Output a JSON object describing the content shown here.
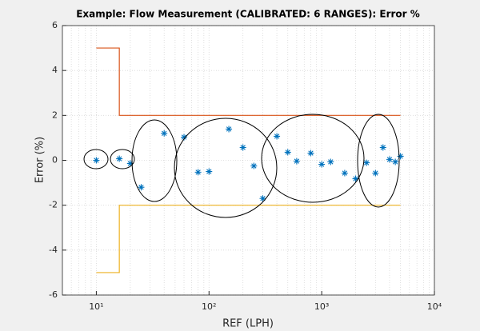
{
  "chart_data": {
    "type": "scatter",
    "title": "Example: Flow Measurement (CALIBRATED: 6 RANGES): Error %",
    "x_label": "REF (LPH)",
    "y_label": "Error (%)",
    "x_scale": "log",
    "grid": true,
    "minor_grid": true,
    "xlim": [
      5,
      10000
    ],
    "xticks": [
      {
        "value": 10,
        "label": "10¹"
      },
      {
        "value": 100,
        "label": "10²"
      },
      {
        "value": 1000,
        "label": "10³"
      },
      {
        "value": 10000,
        "label": "10⁴"
      }
    ],
    "ylim": [
      -6,
      6
    ],
    "yticks": [
      -6,
      -4,
      -2,
      0,
      2,
      4,
      6
    ],
    "series": [
      {
        "style": "marker",
        "color": "#0072bd",
        "x": [
          10,
          16,
          20,
          25,
          40,
          60,
          80,
          100,
          150,
          200,
          250,
          300,
          400,
          500,
          600,
          800,
          1000,
          1200,
          1600,
          2000,
          2500,
          3000,
          3500,
          4000,
          4500,
          5000
        ],
        "values": [
          0,
          0.07,
          -0.14,
          -1.2,
          1.2,
          1.03,
          -0.53,
          -0.5,
          1.39,
          0.57,
          -0.25,
          -1.7,
          1.07,
          0.36,
          -0.04,
          0.32,
          -0.18,
          -0.07,
          -0.57,
          -0.82,
          -0.11,
          -0.57,
          0.57,
          0.04,
          -0.07,
          0.18
        ]
      },
      {
        "style": "line",
        "color": "#d95319",
        "x": [
          10,
          16,
          16,
          5000
        ],
        "values": [
          5,
          5,
          2,
          2
        ]
      },
      {
        "style": "line",
        "color": "#edb120",
        "x": [
          10,
          16,
          16,
          5000
        ],
        "values": [
          -5,
          -5,
          -2,
          -2
        ]
      }
    ]
  }
}
